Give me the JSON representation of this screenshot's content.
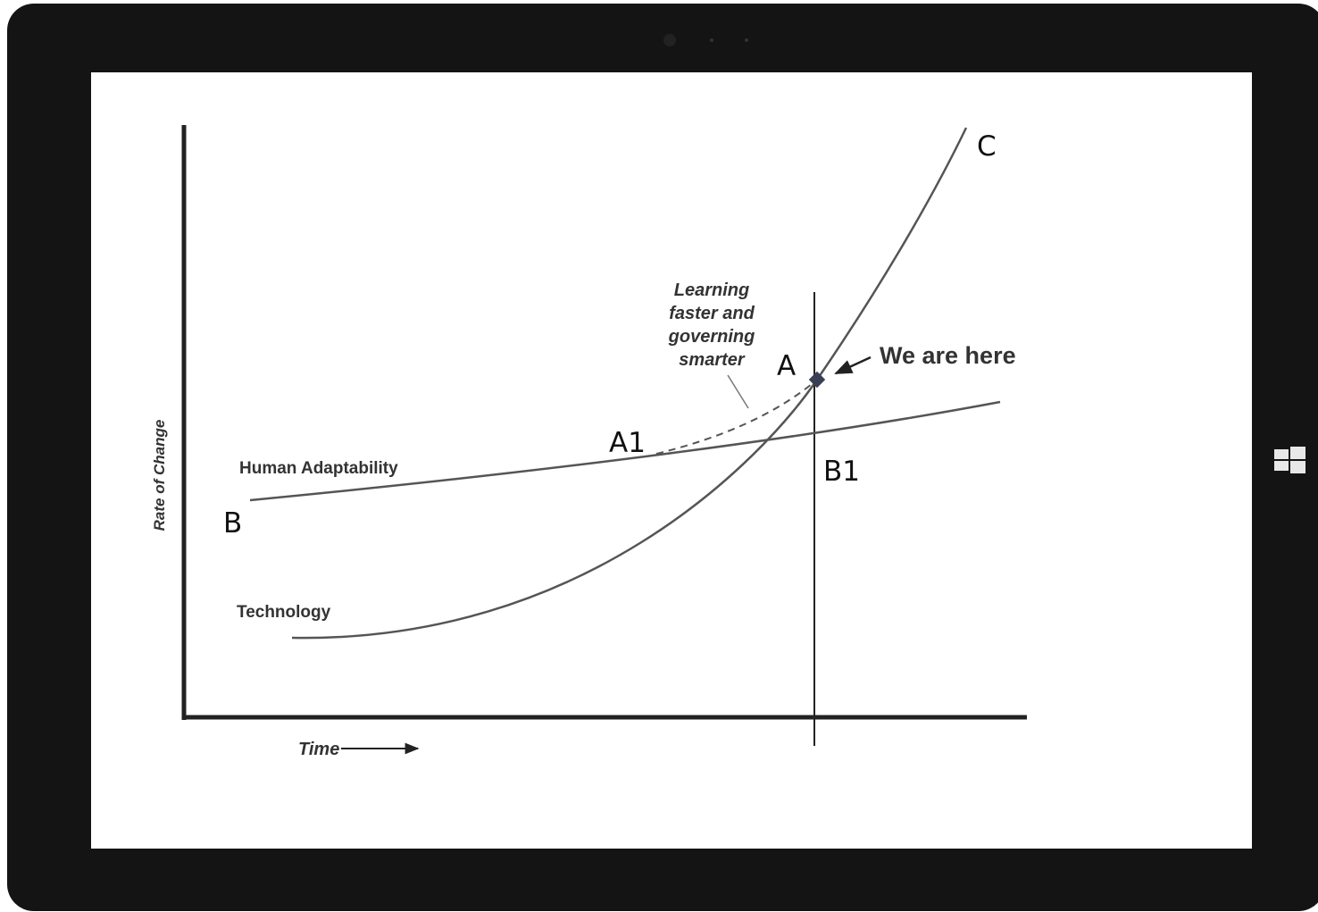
{
  "axes": {
    "y_label": "Rate of Change",
    "x_label": "Time"
  },
  "curves": {
    "human": "Human Adaptability",
    "technology": "Technology"
  },
  "annotation": {
    "lines": [
      "Learning",
      "faster and",
      "governing",
      "smarter"
    ]
  },
  "marker": "We are here",
  "points": [
    "A",
    "A1",
    "B",
    "B1",
    "C"
  ]
}
